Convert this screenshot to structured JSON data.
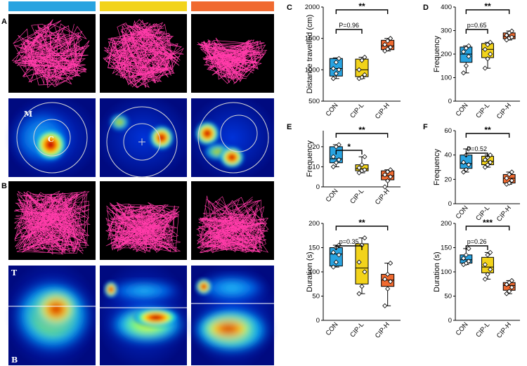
{
  "colors": {
    "con": "#29a3e0",
    "cipl": "#f2d31b",
    "ciph": "#f06a30",
    "track": "#ff3aa8",
    "pink": "#ff3aa8"
  },
  "panels": {
    "A": "A",
    "B": "B",
    "C": "C",
    "D": "D",
    "E": "E",
    "F": "F"
  },
  "heatmap_labels": {
    "M": "M",
    "C": "C",
    "T": "T",
    "B": "B"
  },
  "chart_data": [
    {
      "panel": "C",
      "type": "box",
      "ylabel": "Distance travelled (cm)",
      "ylim": [
        500,
        2000
      ],
      "yticks": [
        500,
        1000,
        1500,
        2000
      ],
      "categories": [
        "CON",
        "CIP-L",
        "CIP-H"
      ],
      "boxes": [
        {
          "min": 860,
          "q1": 900,
          "median": 1020,
          "q3": 1180,
          "max": 1190
        },
        {
          "min": 860,
          "q1": 890,
          "median": 1000,
          "q3": 1170,
          "max": 1200
        },
        {
          "min": 1300,
          "q1": 1320,
          "median": 1380,
          "q3": 1470,
          "max": 1500
        }
      ],
      "points": [
        [
          860,
          940,
          1000,
          1020,
          1120,
          1180
        ],
        [
          860,
          880,
          920,
          1000,
          1150,
          1200
        ],
        [
          1300,
          1330,
          1360,
          1400,
          1460,
          1500
        ]
      ],
      "brackets": [
        {
          "from": 0,
          "to": 1,
          "label": "P=0.96",
          "level": 1
        },
        {
          "from": 0,
          "to": 2,
          "label": "**",
          "level": 2
        }
      ]
    },
    {
      "panel": "D",
      "type": "box",
      "ylabel": "Frequency",
      "ylim": [
        0,
        400
      ],
      "yticks": [
        0,
        100,
        200,
        300,
        400
      ],
      "categories": [
        "CON",
        "CIP-L",
        "CIP-H"
      ],
      "boxes": [
        {
          "min": 120,
          "q1": 165,
          "median": 200,
          "q3": 230,
          "max": 235
        },
        {
          "min": 140,
          "q1": 185,
          "median": 220,
          "q3": 245,
          "max": 250
        },
        {
          "min": 260,
          "q1": 265,
          "median": 275,
          "q3": 290,
          "max": 298
        }
      ],
      "points": [
        [
          120,
          150,
          190,
          210,
          225,
          235
        ],
        [
          140,
          180,
          200,
          220,
          240,
          250
        ],
        [
          260,
          268,
          272,
          280,
          290,
          298
        ]
      ],
      "brackets": [
        {
          "from": 0,
          "to": 1,
          "label": "p=0.65",
          "level": 1
        },
        {
          "from": 0,
          "to": 2,
          "label": "**",
          "level": 2
        }
      ]
    },
    {
      "panel": "E",
      "type": "box",
      "ylabel": "Frequency",
      "ylim": [
        0,
        28
      ],
      "yticks": [
        0,
        10,
        20
      ],
      "categories": [
        "CON",
        "CIP-L",
        "CIP-H"
      ],
      "boxes": [
        {
          "min": 10,
          "q1": 12,
          "median": 14,
          "q3": 20,
          "max": 21
        },
        {
          "min": 7,
          "q1": 8,
          "median": 9,
          "q3": 11,
          "max": 15
        },
        {
          "min": 0,
          "q1": 3.5,
          "median": 5.5,
          "q3": 8,
          "max": 8.5
        }
      ],
      "points": [
        [
          10,
          12,
          13.5,
          15,
          20,
          21
        ],
        [
          7,
          8,
          8.5,
          9.5,
          11,
          15
        ],
        [
          0,
          3,
          5,
          6,
          7.5,
          8.5
        ]
      ],
      "brackets": [
        {
          "from": 0,
          "to": 1,
          "label": "*",
          "level": 1
        },
        {
          "from": 0,
          "to": 2,
          "label": "**",
          "level": 2
        }
      ]
    },
    {
      "panel": "F",
      "type": "box",
      "ylabel": "Frequency",
      "ylim": [
        0,
        60
      ],
      "yticks": [
        0,
        20,
        40,
        60
      ],
      "categories": [
        "CON",
        "CIP-L",
        "CIP-H"
      ],
      "boxes": [
        {
          "min": 26,
          "q1": 29,
          "median": 33,
          "q3": 40,
          "max": 45
        },
        {
          "min": 30,
          "q1": 32,
          "median": 35,
          "q3": 39,
          "max": 40
        },
        {
          "min": 16,
          "q1": 17,
          "median": 21,
          "q3": 24,
          "max": 26
        }
      ],
      "points": [
        [
          26,
          28,
          32,
          34,
          40,
          45
        ],
        [
          30,
          32,
          34,
          36,
          38,
          40
        ],
        [
          16,
          17,
          19,
          21,
          24,
          26
        ]
      ],
      "brackets": [
        {
          "from": 0,
          "to": 1,
          "label": "P=0.52",
          "level": 1
        },
        {
          "from": 0,
          "to": 2,
          "label": "**",
          "level": 2
        }
      ]
    },
    {
      "panel": "E2",
      "type": "box",
      "ylabel": "Duration (s)",
      "ylim": [
        0,
        200
      ],
      "yticks": [
        0,
        50,
        100,
        150,
        200
      ],
      "categories": [
        "CON",
        "CIP-L",
        "CIP-H"
      ],
      "boxes": [
        {
          "min": 110,
          "q1": 112,
          "median": 137,
          "q3": 150,
          "max": 155
        },
        {
          "min": 55,
          "q1": 75,
          "median": 108,
          "q3": 158,
          "max": 170
        },
        {
          "min": 30,
          "q1": 70,
          "median": 83,
          "q3": 95,
          "max": 118
        }
      ],
      "points": [
        [
          110,
          120,
          135,
          140,
          150,
          155
        ],
        [
          55,
          70,
          100,
          120,
          155,
          170
        ],
        [
          30,
          65,
          80,
          85,
          95,
          118
        ]
      ],
      "brackets": [
        {
          "from": 0,
          "to": 1,
          "label": "p=0.35",
          "level": 1
        },
        {
          "from": 0,
          "to": 2,
          "label": "**",
          "level": 2
        }
      ]
    },
    {
      "panel": "F2",
      "type": "box",
      "ylabel": "Duration (s)",
      "ylim": [
        0,
        200
      ],
      "yticks": [
        0,
        50,
        100,
        150,
        200
      ],
      "categories": [
        "CON",
        "CIP-L",
        "CIP-H"
      ],
      "boxes": [
        {
          "min": 115,
          "q1": 118,
          "median": 125,
          "q3": 135,
          "max": 148
        },
        {
          "min": 85,
          "q1": 98,
          "median": 110,
          "q3": 130,
          "max": 140
        },
        {
          "min": 55,
          "q1": 62,
          "median": 72,
          "q3": 78,
          "max": 82
        }
      ],
      "points": [
        [
          115,
          118,
          122,
          128,
          135,
          148
        ],
        [
          85,
          95,
          105,
          115,
          135,
          140
        ],
        [
          55,
          60,
          68,
          74,
          78,
          82
        ]
      ],
      "brackets": [
        {
          "from": 0,
          "to": 1,
          "label": "p=0.26",
          "level": 1
        },
        {
          "from": 0,
          "to": 2,
          "label": "***",
          "level": 2
        }
      ]
    }
  ]
}
